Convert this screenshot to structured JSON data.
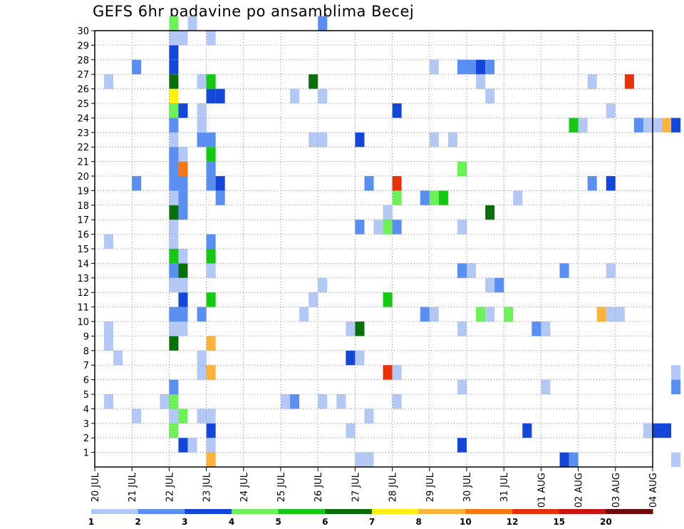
{
  "chart_data": {
    "type": "heatmap",
    "title": "GEFS 6hr padavine po ansamblima Becej",
    "xlabel": "",
    "ylabel": "",
    "x_start": "2020-07-20T00:00",
    "step_hours": 6,
    "x_tick_labels": [
      "20 JUL",
      "21 JUL",
      "22 JUL",
      "23 JUL",
      "24 JUL",
      "25 JUL",
      "26 JUL",
      "27 JUL",
      "28 JUL",
      "29 JUL",
      "30 JUL",
      "31 JUL",
      "01 AUG",
      "02 AUG",
      "03 AUG",
      "04 AUG"
    ],
    "y_tick_labels": [
      "1",
      "2",
      "3",
      "4",
      "5",
      "6",
      "7",
      "8",
      "9",
      "10",
      "11",
      "12",
      "13",
      "14",
      "15",
      "16",
      "17",
      "18",
      "19",
      "20",
      "21",
      "22",
      "23",
      "24",
      "25",
      "26",
      "27",
      "28",
      "29",
      "30"
    ],
    "ylim": [
      0,
      30
    ],
    "grid": true,
    "legend": {
      "position": "bottom",
      "labels": [
        "1",
        "2",
        "3",
        "4",
        "5",
        "6",
        "7",
        "8",
        "10",
        "12",
        "15",
        "20"
      ],
      "colors": [
        "#b4c8f5",
        "#5a8ef0",
        "#1446d8",
        "#6ef05a",
        "#14c814",
        "#0a6e0a",
        "#fff014",
        "#fab43c",
        "#f57814",
        "#e6320a",
        "#c81414",
        "#6e0a0a"
      ]
    },
    "cells": [
      {
        "t": "2020-07-20 06",
        "m": 4,
        "v": 1
      },
      {
        "t": "2020-07-20 06",
        "m": 9,
        "v": 1
      },
      {
        "t": "2020-07-20 06",
        "m": 8,
        "v": 1
      },
      {
        "t": "2020-07-20 06",
        "m": 15,
        "v": 1
      },
      {
        "t": "2020-07-20 06",
        "m": 26,
        "v": 1
      },
      {
        "t": "2020-07-20 12",
        "m": 7,
        "v": 1
      },
      {
        "t": "2020-07-21 00",
        "m": 3,
        "v": 1
      },
      {
        "t": "2020-07-21 00",
        "m": 19,
        "v": 2
      },
      {
        "t": "2020-07-21 00",
        "m": 27,
        "v": 2
      },
      {
        "t": "2020-07-21 18",
        "m": 4,
        "v": 1
      },
      {
        "t": "2020-07-22 00",
        "m": 2,
        "v": 4
      },
      {
        "t": "2020-07-22 00",
        "m": 3,
        "v": 1
      },
      {
        "t": "2020-07-22 00",
        "m": 4,
        "v": 4
      },
      {
        "t": "2020-07-22 00",
        "m": 5,
        "v": 2
      },
      {
        "t": "2020-07-22 00",
        "m": 8,
        "v": 6
      },
      {
        "t": "2020-07-22 00",
        "m": 9,
        "v": 1
      },
      {
        "t": "2020-07-22 00",
        "m": 10,
        "v": 2
      },
      {
        "t": "2020-07-22 00",
        "m": 12,
        "v": 1
      },
      {
        "t": "2020-07-22 00",
        "m": 13,
        "v": 2
      },
      {
        "t": "2020-07-22 00",
        "m": 14,
        "v": 5
      },
      {
        "t": "2020-07-22 00",
        "m": 15,
        "v": 1
      },
      {
        "t": "2020-07-22 00",
        "m": 16,
        "v": 1
      },
      {
        "t": "2020-07-22 00",
        "m": 17,
        "v": 6
      },
      {
        "t": "2020-07-22 00",
        "m": 18,
        "v": 1
      },
      {
        "t": "2020-07-22 00",
        "m": 19,
        "v": 2
      },
      {
        "t": "2020-07-22 00",
        "m": 20,
        "v": 2
      },
      {
        "t": "2020-07-22 00",
        "m": 21,
        "v": 2
      },
      {
        "t": "2020-07-22 00",
        "m": 22,
        "v": 1
      },
      {
        "t": "2020-07-22 00",
        "m": 23,
        "v": 2
      },
      {
        "t": "2020-07-22 00",
        "m": 24,
        "v": 4
      },
      {
        "t": "2020-07-22 00",
        "m": 25,
        "v": 7
      },
      {
        "t": "2020-07-22 00",
        "m": 26,
        "v": 6
      },
      {
        "t": "2020-07-22 00",
        "m": 27,
        "v": 3
      },
      {
        "t": "2020-07-22 00",
        "m": 28,
        "v": 3
      },
      {
        "t": "2020-07-22 00",
        "m": 29,
        "v": 1
      },
      {
        "t": "2020-07-22 00",
        "m": 30,
        "v": 4
      },
      {
        "t": "2020-07-22 06",
        "m": 1,
        "v": 3
      },
      {
        "t": "2020-07-22 06",
        "m": 3,
        "v": 4
      },
      {
        "t": "2020-07-22 06",
        "m": 9,
        "v": 1
      },
      {
        "t": "2020-07-22 06",
        "m": 10,
        "v": 2
      },
      {
        "t": "2020-07-22 06",
        "m": 11,
        "v": 3
      },
      {
        "t": "2020-07-22 06",
        "m": 12,
        "v": 1
      },
      {
        "t": "2020-07-22 06",
        "m": 13,
        "v": 6
      },
      {
        "t": "2020-07-22 06",
        "m": 14,
        "v": 1
      },
      {
        "t": "2020-07-22 06",
        "m": 17,
        "v": 2
      },
      {
        "t": "2020-07-22 06",
        "m": 18,
        "v": 2
      },
      {
        "t": "2020-07-22 06",
        "m": 19,
        "v": 2
      },
      {
        "t": "2020-07-22 06",
        "m": 20,
        "v": 10
      },
      {
        "t": "2020-07-22 06",
        "m": 21,
        "v": 1
      },
      {
        "t": "2020-07-22 06",
        "m": 24,
        "v": 3
      },
      {
        "t": "2020-07-22 06",
        "m": 29,
        "v": 1
      },
      {
        "t": "2020-07-22 12",
        "m": 1,
        "v": 1
      },
      {
        "t": "2020-07-22 12",
        "m": 30,
        "v": 1
      },
      {
        "t": "2020-07-22 18",
        "m": 3,
        "v": 1
      },
      {
        "t": "2020-07-22 18",
        "m": 6,
        "v": 1
      },
      {
        "t": "2020-07-22 18",
        "m": 7,
        "v": 1
      },
      {
        "t": "2020-07-22 18",
        "m": 10,
        "v": 2
      },
      {
        "t": "2020-07-22 18",
        "m": 22,
        "v": 2
      },
      {
        "t": "2020-07-22 18",
        "m": 23,
        "v": 1
      },
      {
        "t": "2020-07-22 18",
        "m": 24,
        "v": 1
      },
      {
        "t": "2020-07-22 18",
        "m": 26,
        "v": 1
      },
      {
        "t": "2020-07-23 00",
        "m": 0,
        "v": 8
      },
      {
        "t": "2020-07-23 00",
        "m": 1,
        "v": 1
      },
      {
        "t": "2020-07-23 00",
        "m": 2,
        "v": 3
      },
      {
        "t": "2020-07-23 00",
        "m": 3,
        "v": 1
      },
      {
        "t": "2020-07-23 00",
        "m": 6,
        "v": 8
      },
      {
        "t": "2020-07-23 00",
        "m": 8,
        "v": 8
      },
      {
        "t": "2020-07-23 00",
        "m": 11,
        "v": 5
      },
      {
        "t": "2020-07-23 00",
        "m": 13,
        "v": 1
      },
      {
        "t": "2020-07-23 00",
        "m": 14,
        "v": 5
      },
      {
        "t": "2020-07-23 00",
        "m": 15,
        "v": 2
      },
      {
        "t": "2020-07-23 00",
        "m": 19,
        "v": 2
      },
      {
        "t": "2020-07-23 00",
        "m": 20,
        "v": 2
      },
      {
        "t": "2020-07-23 00",
        "m": 21,
        "v": 5
      },
      {
        "t": "2020-07-23 00",
        "m": 22,
        "v": 2
      },
      {
        "t": "2020-07-23 00",
        "m": 25,
        "v": 3
      },
      {
        "t": "2020-07-23 00",
        "m": 26,
        "v": 5
      },
      {
        "t": "2020-07-23 00",
        "m": 29,
        "v": 1
      },
      {
        "t": "2020-07-23 06",
        "m": 18,
        "v": 2
      },
      {
        "t": "2020-07-23 06",
        "m": 19,
        "v": 3
      },
      {
        "t": "2020-07-23 06",
        "m": 25,
        "v": 3
      },
      {
        "t": "2020-07-25 00",
        "m": 4,
        "v": 1
      },
      {
        "t": "2020-07-25 06",
        "m": 4,
        "v": 2
      },
      {
        "t": "2020-07-25 06",
        "m": 25,
        "v": 1
      },
      {
        "t": "2020-07-25 12",
        "m": 10,
        "v": 1
      },
      {
        "t": "2020-07-25 18",
        "m": 11,
        "v": 1
      },
      {
        "t": "2020-07-25 18",
        "m": 22,
        "v": 1
      },
      {
        "t": "2020-07-25 18",
        "m": 26,
        "v": 6
      },
      {
        "t": "2020-07-26 00",
        "m": 4,
        "v": 1
      },
      {
        "t": "2020-07-26 00",
        "m": 12,
        "v": 1
      },
      {
        "t": "2020-07-26 00",
        "m": 22,
        "v": 1
      },
      {
        "t": "2020-07-26 00",
        "m": 25,
        "v": 1
      },
      {
        "t": "2020-07-26 00",
        "m": 30,
        "v": 2
      },
      {
        "t": "2020-07-26 12",
        "m": 4,
        "v": 1
      },
      {
        "t": "2020-07-26 18",
        "m": 2,
        "v": 1
      },
      {
        "t": "2020-07-26 18",
        "m": 7,
        "v": 3
      },
      {
        "t": "2020-07-26 18",
        "m": 9,
        "v": 1
      },
      {
        "t": "2020-07-27 00",
        "m": 7,
        "v": 1
      },
      {
        "t": "2020-07-27 00",
        "m": 9,
        "v": 6
      },
      {
        "t": "2020-07-27 00",
        "m": 16,
        "v": 2
      },
      {
        "t": "2020-07-27 00",
        "m": 22,
        "v": 3
      },
      {
        "t": "2020-07-27 00",
        "m": 0,
        "v": 1
      },
      {
        "t": "2020-07-27 06",
        "m": 3,
        "v": 1
      },
      {
        "t": "2020-07-27 06",
        "m": 19,
        "v": 2
      },
      {
        "t": "2020-07-27 06",
        "m": 0,
        "v": 1
      },
      {
        "t": "2020-07-27 12",
        "m": 16,
        "v": 1
      },
      {
        "t": "2020-07-27 18",
        "m": 6,
        "v": 12
      },
      {
        "t": "2020-07-27 18",
        "m": 11,
        "v": 5
      },
      {
        "t": "2020-07-27 18",
        "m": 16,
        "v": 4
      },
      {
        "t": "2020-07-27 18",
        "m": 17,
        "v": 1
      },
      {
        "t": "2020-07-28 00",
        "m": 4,
        "v": 1
      },
      {
        "t": "2020-07-28 00",
        "m": 6,
        "v": 1
      },
      {
        "t": "2020-07-28 00",
        "m": 16,
        "v": 2
      },
      {
        "t": "2020-07-28 00",
        "m": 18,
        "v": 4
      },
      {
        "t": "2020-07-28 00",
        "m": 19,
        "v": 12
      },
      {
        "t": "2020-07-28 00",
        "m": 24,
        "v": 3
      },
      {
        "t": "2020-07-28 18",
        "m": 10,
        "v": 2
      },
      {
        "t": "2020-07-28 18",
        "m": 18,
        "v": 2
      },
      {
        "t": "2020-07-29 00",
        "m": 10,
        "v": 1
      },
      {
        "t": "2020-07-29 00",
        "m": 18,
        "v": 4
      },
      {
        "t": "2020-07-29 00",
        "m": 22,
        "v": 1
      },
      {
        "t": "2020-07-29 00",
        "m": 27,
        "v": 1
      },
      {
        "t": "2020-07-29 06",
        "m": 18,
        "v": 5
      },
      {
        "t": "2020-07-29 12",
        "m": 22,
        "v": 1
      },
      {
        "t": "2020-07-29 18",
        "m": 1,
        "v": 3
      },
      {
        "t": "2020-07-29 18",
        "m": 5,
        "v": 1
      },
      {
        "t": "2020-07-29 18",
        "m": 9,
        "v": 1
      },
      {
        "t": "2020-07-29 18",
        "m": 13,
        "v": 2
      },
      {
        "t": "2020-07-29 18",
        "m": 16,
        "v": 1
      },
      {
        "t": "2020-07-29 18",
        "m": 20,
        "v": 4
      },
      {
        "t": "2020-07-29 18",
        "m": 27,
        "v": 2
      },
      {
        "t": "2020-07-30 00",
        "m": 13,
        "v": 1
      },
      {
        "t": "2020-07-30 00",
        "m": 27,
        "v": 2
      },
      {
        "t": "2020-07-30 06",
        "m": 10,
        "v": 4
      },
      {
        "t": "2020-07-30 06",
        "m": 26,
        "v": 1
      },
      {
        "t": "2020-07-30 06",
        "m": 27,
        "v": 3
      },
      {
        "t": "2020-07-30 12",
        "m": 10,
        "v": 1
      },
      {
        "t": "2020-07-30 12",
        "m": 12,
        "v": 1
      },
      {
        "t": "2020-07-30 12",
        "m": 17,
        "v": 6
      },
      {
        "t": "2020-07-30 12",
        "m": 25,
        "v": 1
      },
      {
        "t": "2020-07-30 12",
        "m": 27,
        "v": 2
      },
      {
        "t": "2020-07-30 18",
        "m": 12,
        "v": 2
      },
      {
        "t": "2020-07-31 00",
        "m": 10,
        "v": 4
      },
      {
        "t": "2020-07-31 06",
        "m": 18,
        "v": 1
      },
      {
        "t": "2020-07-31 12",
        "m": 2,
        "v": 3
      },
      {
        "t": "2020-07-31 18",
        "m": 9,
        "v": 2
      },
      {
        "t": "2020-08-01 00",
        "m": 5,
        "v": 1
      },
      {
        "t": "2020-08-01 00",
        "m": 9,
        "v": 1
      },
      {
        "t": "2020-08-01 12",
        "m": 13,
        "v": 2
      },
      {
        "t": "2020-08-01 12",
        "m": 0,
        "v": 3
      },
      {
        "t": "2020-08-01 18",
        "m": 23,
        "v": 5
      },
      {
        "t": "2020-08-01 18",
        "m": 0,
        "v": 2
      },
      {
        "t": "2020-08-02 00",
        "m": 23,
        "v": 1
      },
      {
        "t": "2020-08-02 06",
        "m": 19,
        "v": 2
      },
      {
        "t": "2020-08-02 06",
        "m": 26,
        "v": 1
      },
      {
        "t": "2020-08-02 12",
        "m": 10,
        "v": 8
      },
      {
        "t": "2020-08-02 18",
        "m": 10,
        "v": 1
      },
      {
        "t": "2020-08-02 18",
        "m": 13,
        "v": 1
      },
      {
        "t": "2020-08-02 18",
        "m": 19,
        "v": 3
      },
      {
        "t": "2020-08-02 18",
        "m": 24,
        "v": 1
      },
      {
        "t": "2020-08-03 00",
        "m": 10,
        "v": 1
      },
      {
        "t": "2020-08-03 06",
        "m": 26,
        "v": 12
      },
      {
        "t": "2020-08-03 12",
        "m": 23,
        "v": 2
      },
      {
        "t": "2020-08-03 18",
        "m": 2,
        "v": 1
      },
      {
        "t": "2020-08-03 18",
        "m": 23,
        "v": 1
      },
      {
        "t": "2020-08-04 00",
        "m": 2,
        "v": 3
      },
      {
        "t": "2020-08-04 00",
        "m": 23,
        "v": 1
      },
      {
        "t": "2020-08-04 06",
        "m": 2,
        "v": 3
      },
      {
        "t": "2020-08-04 06",
        "m": 23,
        "v": 8
      },
      {
        "t": "2020-08-04 12",
        "m": 5,
        "v": 2
      },
      {
        "t": "2020-08-04 12",
        "m": 6,
        "v": 1
      },
      {
        "t": "2020-08-04 12",
        "m": 23,
        "v": 3
      },
      {
        "t": "2020-08-04 12",
        "m": 0,
        "v": 1
      }
    ]
  }
}
